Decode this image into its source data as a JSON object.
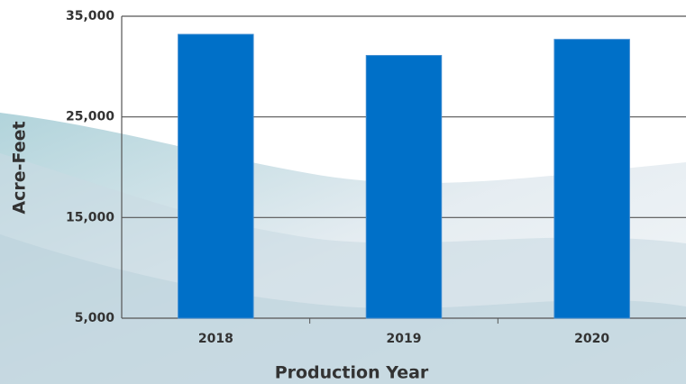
{
  "chart_data": {
    "type": "bar",
    "categories": [
      "2018",
      "2019",
      "2020"
    ],
    "values": [
      33200,
      31100,
      32700
    ],
    "color": "#0070c8",
    "ylim": [
      5000,
      35000
    ],
    "yticks": [
      {
        "value": 5000,
        "label": "5,000"
      },
      {
        "value": 15000,
        "label": "15,000"
      },
      {
        "value": 25000,
        "label": "25,000"
      },
      {
        "value": 35000,
        "label": "35,000"
      }
    ],
    "grid": true,
    "x_label": "Production Year",
    "y_label": "Acre-Feet"
  }
}
